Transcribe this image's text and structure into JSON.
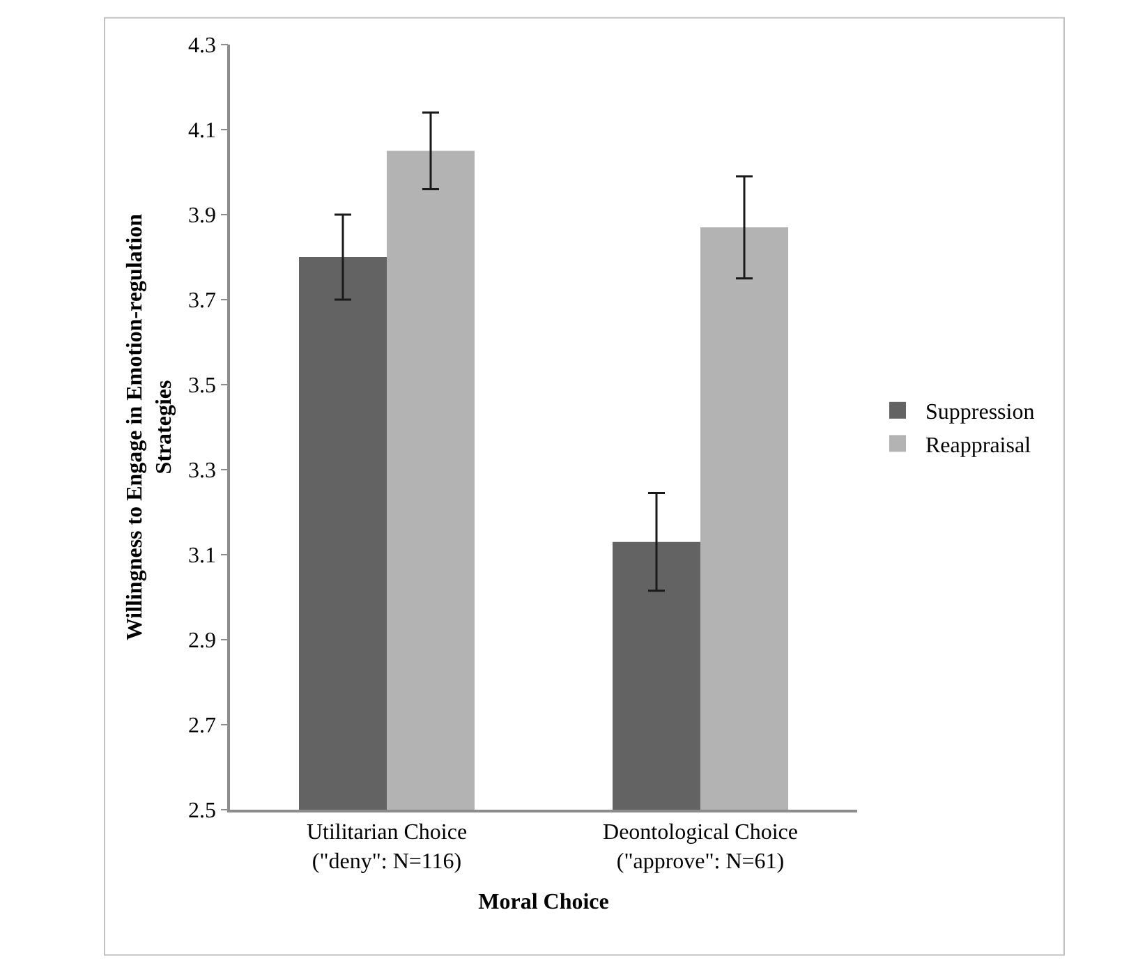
{
  "chart_data": {
    "type": "bar",
    "xlabel": "Moral Choice",
    "ylabel": "Willingness to Engage in Emotion-regulation\nStrategies",
    "categories": [
      "Utilitarian Choice\n(\"deny\": N=116)",
      "Deontological Choice\n(\"approve\": N=61)"
    ],
    "series": [
      {
        "name": "Suppression",
        "color": "#636363",
        "values": [
          3.8,
          3.13
        ],
        "errors": [
          0.1,
          0.115
        ]
      },
      {
        "name": "Reappraisal",
        "color": "#b3b3b3",
        "values": [
          4.05,
          3.87
        ],
        "errors": [
          0.09,
          0.12
        ]
      }
    ],
    "ylim": [
      2.5,
      4.3
    ],
    "yticks": [
      2.5,
      2.7,
      2.9,
      3.1,
      3.3,
      3.5,
      3.7,
      3.9,
      4.1,
      4.3
    ],
    "legend": "right"
  }
}
